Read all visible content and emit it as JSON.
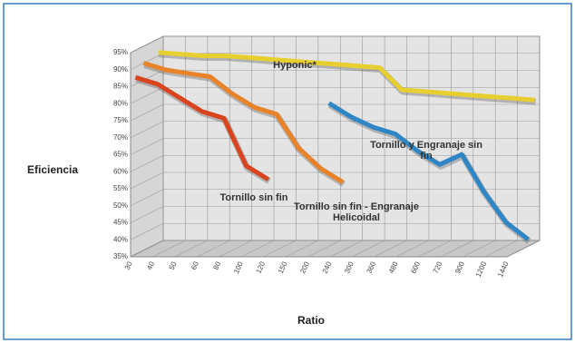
{
  "chart_data": {
    "type": "line3d",
    "y_label": "Eficiencia",
    "x_label": "Ratio",
    "categories": [
      "30",
      "40",
      "50",
      "60",
      "80",
      "100",
      "120",
      "150",
      "200",
      "240",
      "300",
      "360",
      "480",
      "600",
      "720",
      "900",
      "1200",
      "1440"
    ],
    "ylim": [
      35,
      95
    ],
    "yticks": [
      {
        "value": 35,
        "label": "35%"
      },
      {
        "value": 40,
        "label": "40%"
      },
      {
        "value": 45,
        "label": "45%"
      },
      {
        "value": 50,
        "label": "50%"
      },
      {
        "value": 55,
        "label": "55%"
      },
      {
        "value": 60,
        "label": "60%"
      },
      {
        "value": 65,
        "label": "65%"
      },
      {
        "value": 70,
        "label": "70%"
      },
      {
        "value": 75,
        "label": "75%"
      },
      {
        "value": 80,
        "label": "80%"
      },
      {
        "value": 85,
        "label": "85%"
      },
      {
        "value": 90,
        "label": "90%"
      },
      {
        "value": 95,
        "label": "95%"
      }
    ],
    "grid": true,
    "series": [
      {
        "name": "Hyponic*",
        "color": "#e6cf2e",
        "values": [
          91,
          90.5,
          90,
          90,
          89.5,
          89,
          88.5,
          88,
          87.5,
          87,
          86.5,
          80,
          79.5,
          79,
          78.5,
          78,
          77.5,
          77
        ]
      },
      {
        "name": "Tornillo y Engranaje sin fin",
        "color": "#2f86c6",
        "values": [
          null,
          null,
          null,
          null,
          null,
          null,
          null,
          null,
          77,
          73,
          70,
          68,
          63,
          59,
          62,
          51,
          42,
          37
        ]
      },
      {
        "name": "Tornillo sin fin - Engranaje Helicoidal",
        "color": "#e8832a",
        "values": [
          90,
          88,
          87,
          86,
          81,
          77,
          75,
          65,
          59,
          55,
          null,
          null,
          null,
          null,
          null,
          null,
          null,
          null
        ]
      },
      {
        "name": "Tornillo sin fin",
        "color": "#d9441e",
        "values": [
          87,
          85,
          81,
          77,
          75,
          61,
          57,
          null,
          null,
          null,
          null,
          null,
          null,
          null,
          null,
          null,
          null,
          null
        ]
      }
    ]
  }
}
